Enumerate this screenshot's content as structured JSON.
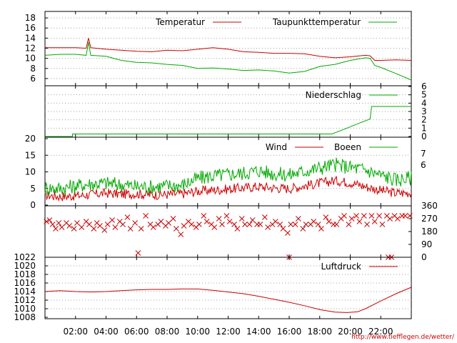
{
  "footer": {
    "source_url": "http://www.tiefflegen.de/wetter/"
  },
  "colors": {
    "temperature": "#cc0000",
    "dewpoint": "#00aa00",
    "precipitation": "#00aa00",
    "wind": "#cc0000",
    "gusts": "#00aa00",
    "direction": "#cc0000",
    "pressure": "#cc0000"
  },
  "chart_data": [
    {
      "type": "line",
      "id": "temp",
      "x": {
        "ticks": [],
        "range": [
          0,
          24
        ]
      },
      "ylim": [
        5,
        19
      ],
      "y_ticks": [
        6,
        8,
        10,
        12,
        14,
        16,
        18
      ],
      "grid": true,
      "legend_position": "top-right",
      "series": [
        {
          "name": "Temperatur",
          "color": "#cc0000",
          "points": [
            [
              0,
              12.1
            ],
            [
              1,
              12.1
            ],
            [
              2,
              12.1
            ],
            [
              2.7,
              12.0
            ],
            [
              2.85,
              14.0
            ],
            [
              3.0,
              12.1
            ],
            [
              4,
              11.8
            ],
            [
              5,
              11.6
            ],
            [
              6,
              11.4
            ],
            [
              7,
              11.3
            ],
            [
              8,
              11.6
            ],
            [
              9,
              11.5
            ],
            [
              10,
              11.8
            ],
            [
              11,
              12.1
            ],
            [
              12,
              11.8
            ],
            [
              13,
              11.3
            ],
            [
              14,
              11.2
            ],
            [
              15,
              11.0
            ],
            [
              16,
              11.0
            ],
            [
              17,
              10.9
            ],
            [
              18,
              10.4
            ],
            [
              19,
              10.1
            ],
            [
              20,
              10.3
            ],
            [
              21,
              10.6
            ],
            [
              21.3,
              10.5
            ],
            [
              21.6,
              9.6
            ],
            [
              22,
              9.6
            ],
            [
              23,
              9.7
            ],
            [
              24,
              9.6
            ]
          ]
        },
        {
          "name": "Taupunkttemperatur",
          "color": "#00aa00",
          "points": [
            [
              0,
              10.6
            ],
            [
              1,
              10.8
            ],
            [
              2,
              10.8
            ],
            [
              2.7,
              10.6
            ],
            [
              2.85,
              13.2
            ],
            [
              3.0,
              10.6
            ],
            [
              4,
              10.4
            ],
            [
              5,
              9.6
            ],
            [
              6,
              9.2
            ],
            [
              7,
              9.1
            ],
            [
              8,
              8.8
            ],
            [
              9,
              8.6
            ],
            [
              10,
              8.0
            ],
            [
              11,
              8.1
            ],
            [
              12,
              7.9
            ],
            [
              13,
              7.6
            ],
            [
              14,
              7.7
            ],
            [
              15,
              7.5
            ],
            [
              16,
              7.1
            ],
            [
              17,
              7.4
            ],
            [
              18,
              8.4
            ],
            [
              19,
              8.8
            ],
            [
              20,
              9.6
            ],
            [
              21,
              10.1
            ],
            [
              21.3,
              10.0
            ],
            [
              21.6,
              8.6
            ],
            [
              22,
              8.2
            ],
            [
              23,
              7.0
            ],
            [
              24,
              5.7
            ]
          ]
        }
      ]
    },
    {
      "type": "line",
      "id": "rain",
      "x": {
        "ticks": [],
        "range": [
          0,
          24
        ]
      },
      "ylim": [
        0,
        6
      ],
      "y_ticks": [
        0,
        1,
        2,
        3,
        4,
        5,
        6
      ],
      "y_axis_side": "right",
      "grid": true,
      "legend_position": "top-right",
      "series": [
        {
          "name": "Niederschlag",
          "color": "#00aa00",
          "points": [
            [
              0,
              0
            ],
            [
              1.8,
              0
            ],
            [
              1.8,
              0.3
            ],
            [
              18.8,
              0.3
            ],
            [
              19.5,
              0.8
            ],
            [
              20.6,
              1.6
            ],
            [
              21.3,
              2.1
            ],
            [
              21.4,
              3.6
            ],
            [
              24,
              3.6
            ]
          ]
        }
      ]
    },
    {
      "type": "line",
      "id": "wind",
      "x": {
        "ticks": [],
        "range": [
          0,
          24
        ]
      },
      "ylim": [
        0,
        20
      ],
      "y_ticks": [
        0,
        5,
        10,
        15,
        20
      ],
      "y_ticks_right": [
        "7",
        "6"
      ],
      "grid": true,
      "legend_position": "top-right",
      "series": [
        {
          "name": "Wind",
          "color": "#cc0000",
          "points": [
            [
              0,
              3.0
            ],
            [
              1,
              2.6
            ],
            [
              2,
              2.8
            ],
            [
              3,
              3.2
            ],
            [
              4,
              3.6
            ],
            [
              5,
              3.3
            ],
            [
              6,
              3.4
            ],
            [
              7,
              3.1
            ],
            [
              8,
              3.2
            ],
            [
              9,
              3.4
            ],
            [
              10,
              4.2
            ],
            [
              11,
              4.5
            ],
            [
              12,
              4.8
            ],
            [
              13,
              5.2
            ],
            [
              14,
              5.6
            ],
            [
              15,
              5.2
            ],
            [
              16,
              5.0
            ],
            [
              17,
              5.8
            ],
            [
              18,
              6.6
            ],
            [
              19,
              7.4
            ],
            [
              20,
              6.8
            ],
            [
              21,
              5.6
            ],
            [
              22,
              4.4
            ],
            [
              23,
              3.6
            ],
            [
              24,
              3.8
            ]
          ]
        },
        {
          "name": "Boeen",
          "color": "#00aa00",
          "points": [
            [
              0,
              5.2
            ],
            [
              1,
              5.0
            ],
            [
              2,
              5.8
            ],
            [
              3,
              6.4
            ],
            [
              4,
              6.6
            ],
            [
              5,
              6.2
            ],
            [
              6,
              5.6
            ],
            [
              7,
              5.5
            ],
            [
              8,
              5.8
            ],
            [
              9,
              6.0
            ],
            [
              10,
              8.0
            ],
            [
              11,
              8.8
            ],
            [
              12,
              9.2
            ],
            [
              13,
              9.6
            ],
            [
              14,
              10.4
            ],
            [
              15,
              9.4
            ],
            [
              16,
              9.1
            ],
            [
              17,
              10.2
            ],
            [
              18,
              11.2
            ],
            [
              19,
              12.2
            ],
            [
              20,
              11.4
            ],
            [
              21,
              10.6
            ],
            [
              22,
              9.0
            ],
            [
              23,
              7.6
            ],
            [
              24,
              8.2
            ]
          ]
        }
      ]
    },
    {
      "type": "scatter",
      "id": "winddir",
      "x": {
        "ticks": [],
        "range": [
          0,
          24
        ]
      },
      "ylim": [
        0,
        360
      ],
      "y_ticks": [
        0,
        90,
        180,
        270,
        360
      ],
      "y_axis_side": "right",
      "marker": "x",
      "series": [
        {
          "color": "#cc0000",
          "points": [
            [
              0.1,
              250
            ],
            [
              0.3,
              260
            ],
            [
              0.5,
              230
            ],
            [
              0.7,
              200
            ],
            [
              0.9,
              240
            ],
            [
              1.1,
              210
            ],
            [
              1.4,
              240
            ],
            [
              1.6,
              220
            ],
            [
              1.9,
              200
            ],
            [
              2.1,
              240
            ],
            [
              2.4,
              210
            ],
            [
              2.7,
              250
            ],
            [
              2.9,
              230
            ],
            [
              3.2,
              200
            ],
            [
              3.4,
              240
            ],
            [
              3.6,
              220
            ],
            [
              3.9,
              190
            ],
            [
              4.1,
              230
            ],
            [
              4.4,
              260
            ],
            [
              4.6,
              210
            ],
            [
              4.9,
              250
            ],
            [
              5.1,
              230
            ],
            [
              5.4,
              280
            ],
            [
              5.6,
              200
            ],
            [
              5.9,
              240
            ],
            [
              6.1,
              30
            ],
            [
              6.3,
              200
            ],
            [
              6.6,
              290
            ],
            [
              6.9,
              230
            ],
            [
              7.1,
              210
            ],
            [
              7.4,
              230
            ],
            [
              7.6,
              250
            ],
            [
              7.9,
              220
            ],
            [
              8.1,
              240
            ],
            [
              8.4,
              270
            ],
            [
              8.6,
              200
            ],
            [
              8.9,
              160
            ],
            [
              9.1,
              220
            ],
            [
              9.4,
              250
            ],
            [
              9.6,
              230
            ],
            [
              9.9,
              210
            ],
            [
              10.1,
              230
            ],
            [
              10.4,
              290
            ],
            [
              10.6,
              250
            ],
            [
              10.9,
              230
            ],
            [
              11.1,
              210
            ],
            [
              11.4,
              270
            ],
            [
              11.6,
              230
            ],
            [
              11.9,
              290
            ],
            [
              12.1,
              250
            ],
            [
              12.4,
              230
            ],
            [
              12.6,
              200
            ],
            [
              12.9,
              270
            ],
            [
              13.1,
              230
            ],
            [
              13.4,
              230
            ],
            [
              13.6,
              260
            ],
            [
              13.9,
              230
            ],
            [
              14.1,
              230
            ],
            [
              14.4,
              280
            ],
            [
              14.6,
              210
            ],
            [
              14.9,
              230
            ],
            [
              15.1,
              250
            ],
            [
              15.4,
              230
            ],
            [
              15.6,
              200
            ],
            [
              15.9,
              170
            ],
            [
              16.1,
              230
            ],
            [
              16.4,
              230
            ],
            [
              16.6,
              270
            ],
            [
              16.9,
              200
            ],
            [
              17.1,
              230
            ],
            [
              17.4,
              230
            ],
            [
              17.6,
              250
            ],
            [
              17.9,
              230
            ],
            [
              18.1,
              200
            ],
            [
              18.4,
              280
            ],
            [
              18.6,
              250
            ],
            [
              18.9,
              230
            ],
            [
              19.1,
              230
            ],
            [
              19.4,
              270
            ],
            [
              19.6,
              290
            ],
            [
              19.9,
              230
            ],
            [
              20.1,
              270
            ],
            [
              20.4,
              290
            ],
            [
              20.6,
              250
            ],
            [
              20.9,
              290
            ],
            [
              21.1,
              230
            ],
            [
              21.4,
              290
            ],
            [
              21.6,
              250
            ],
            [
              21.9,
              290
            ],
            [
              22.1,
              230
            ],
            [
              22.4,
              290
            ],
            [
              22.6,
              270
            ],
            [
              22.9,
              290
            ],
            [
              23.1,
              270
            ],
            [
              23.4,
              290
            ],
            [
              23.6,
              290
            ],
            [
              23.9,
              290
            ],
            [
              16.0,
              0
            ],
            [
              22.5,
              0
            ],
            [
              22.7,
              0
            ]
          ]
        }
      ]
    },
    {
      "type": "line",
      "id": "pressure",
      "x": {
        "ticks": [
          "02:00",
          "04:00",
          "06:00",
          "08:00",
          "10:00",
          "12:00",
          "14:00",
          "16:00",
          "18:00",
          "20:00",
          "22:00"
        ],
        "tick_values": [
          2,
          4,
          6,
          8,
          10,
          12,
          14,
          16,
          18,
          20,
          22
        ],
        "range": [
          0,
          24
        ]
      },
      "ylim": [
        1008,
        1022
      ],
      "y_ticks": [
        1008,
        1010,
        1012,
        1014,
        1016,
        1018,
        1020,
        1022
      ],
      "grid": true,
      "legend_position": "top-right",
      "series": [
        {
          "name": "Luftdruck",
          "color": "#cc0000",
          "points": [
            [
              0,
              1014.0
            ],
            [
              1,
              1014.2
            ],
            [
              2,
              1014.0
            ],
            [
              3,
              1013.9
            ],
            [
              4,
              1014.0
            ],
            [
              5,
              1014.2
            ],
            [
              6,
              1014.4
            ],
            [
              7,
              1014.5
            ],
            [
              8,
              1014.5
            ],
            [
              9,
              1014.6
            ],
            [
              10,
              1014.6
            ],
            [
              11,
              1014.3
            ],
            [
              12,
              1013.9
            ],
            [
              13,
              1013.5
            ],
            [
              14,
              1012.9
            ],
            [
              15,
              1012.2
            ],
            [
              16,
              1011.5
            ],
            [
              17,
              1010.7
            ],
            [
              18,
              1009.8
            ],
            [
              19,
              1009.2
            ],
            [
              19.8,
              1009.1
            ],
            [
              20.5,
              1009.3
            ],
            [
              21,
              1010.0
            ],
            [
              22,
              1011.8
            ],
            [
              23,
              1013.5
            ],
            [
              24,
              1015.0
            ]
          ]
        }
      ]
    }
  ]
}
